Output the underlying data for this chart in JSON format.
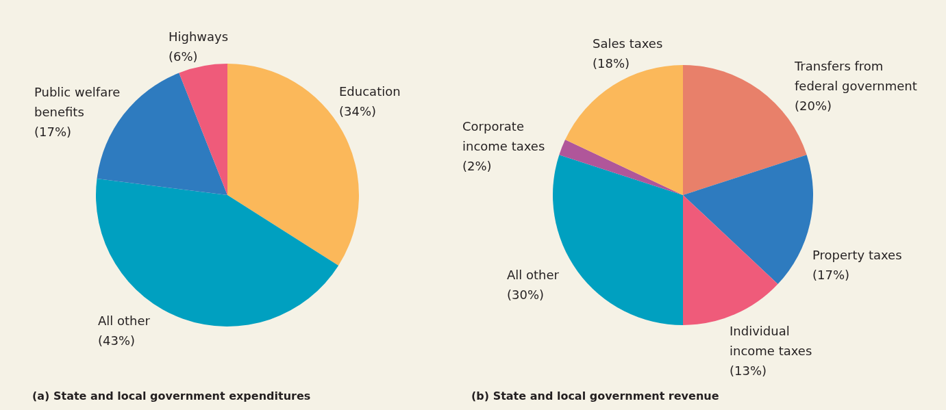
{
  "chart_data": [
    {
      "type": "pie",
      "title": "(a) State and local government expenditures",
      "categories": [
        "Education",
        "All other",
        "Public welfare benefits",
        "Highways"
      ],
      "values": [
        34,
        43,
        17,
        6
      ],
      "value_labels": [
        "(34%)",
        "(43%)",
        "(17%)",
        "(6%)"
      ],
      "colors": [
        "#fbb85a",
        "#00a0c0",
        "#2e7bbf",
        "#ef5b7a"
      ]
    },
    {
      "type": "pie",
      "title": "(b) State and local government revenue",
      "categories": [
        "Transfers from federal government",
        "Property taxes",
        "Individual income taxes",
        "All other",
        "Corporate income taxes",
        "Sales taxes"
      ],
      "values": [
        20,
        17,
        13,
        30,
        2,
        18
      ],
      "value_labels": [
        "(20%)",
        "(17%)",
        "(13%)",
        "(30%)",
        "(2%)",
        "(18%)"
      ],
      "colors": [
        "#e8806a",
        "#2e7bbf",
        "#ef5b7a",
        "#00a0c0",
        "#b0569a",
        "#fbb85a"
      ]
    }
  ]
}
